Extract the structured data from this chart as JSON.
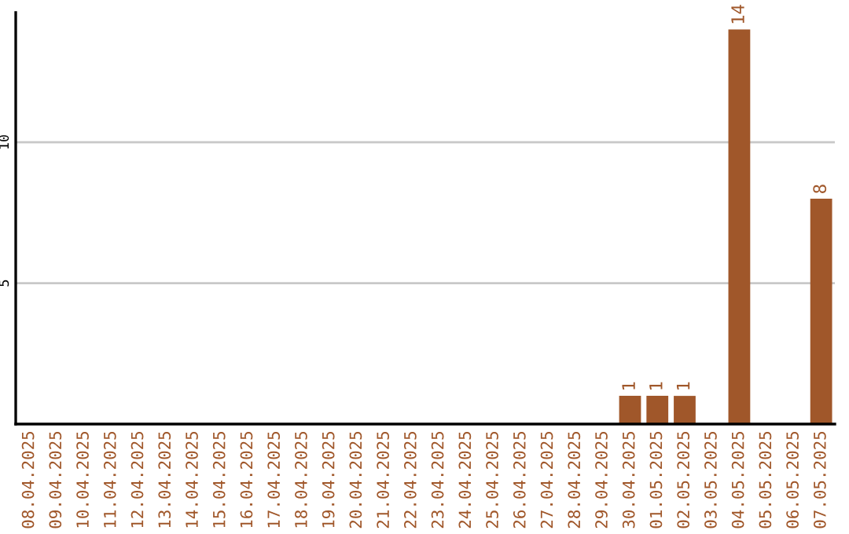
{
  "chart_data": {
    "type": "bar",
    "categories": [
      "08.04.2025",
      "09.04.2025",
      "10.04.2025",
      "11.04.2025",
      "12.04.2025",
      "13.04.2025",
      "14.04.2025",
      "15.04.2025",
      "16.04.2025",
      "17.04.2025",
      "18.04.2025",
      "19.04.2025",
      "20.04.2025",
      "21.04.2025",
      "22.04.2025",
      "23.04.2025",
      "24.04.2025",
      "25.04.2025",
      "26.04.2025",
      "27.04.2025",
      "28.04.2025",
      "29.04.2025",
      "30.04.2025",
      "01.05.2025",
      "02.05.2025",
      "03.05.2025",
      "04.05.2025",
      "05.05.2025",
      "06.05.2025",
      "07.05.2025"
    ],
    "values": [
      0,
      0,
      0,
      0,
      0,
      0,
      0,
      0,
      0,
      0,
      0,
      0,
      0,
      0,
      0,
      0,
      0,
      0,
      0,
      0,
      0,
      0,
      1,
      1,
      1,
      0,
      14,
      0,
      0,
      8
    ],
    "value_labels": [
      null,
      null,
      null,
      null,
      null,
      null,
      null,
      null,
      null,
      null,
      null,
      null,
      null,
      null,
      null,
      null,
      null,
      null,
      null,
      null,
      null,
      null,
      "1",
      "1",
      "1",
      null,
      "14",
      null,
      null,
      "8"
    ],
    "color": "#a0572a",
    "ylim": [
      0,
      14.6
    ],
    "yticks": [
      5,
      10
    ],
    "grid": "y",
    "legend": false
  }
}
